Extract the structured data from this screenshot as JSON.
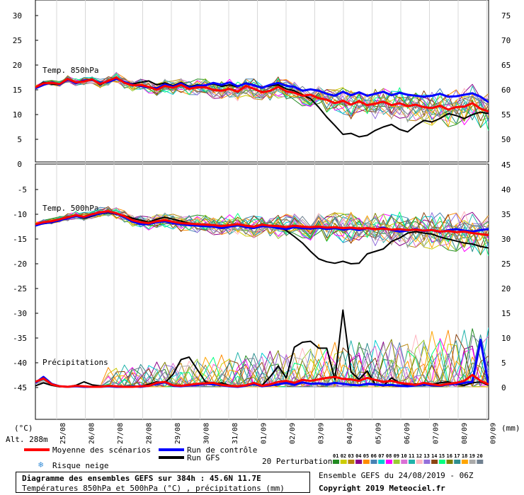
{
  "chart_data": {
    "type": "line",
    "title": "Diagramme des ensembles GEFS sur 384h : 45.6N 11.7E",
    "subtitle": "Températures 850hPa et 500hPa (°C) , précipitations (mm)",
    "ylabel": "(°C)",
    "ylabel_right": "(mm)",
    "altitude": "Alt. 288m",
    "panels": {
      "t850": {
        "label": "Temp. 850hPa",
        "ylim": [
          0,
          33
        ],
        "yticks": [
          0,
          5,
          10,
          15,
          20,
          25,
          30
        ],
        "right_ticks": [
          "50",
          "55",
          "60",
          "65",
          "70",
          "75"
        ]
      },
      "t500": {
        "label": "Temp. 500hPa",
        "ylim": [
          -50,
          -5
        ],
        "yticks": [
          -45,
          -40,
          -35,
          -30,
          -25,
          -20,
          -15,
          -10,
          -5
        ],
        "right_ticks": [
          "0",
          "5",
          "10",
          "15",
          "20",
          "25",
          "30",
          "35",
          "40",
          "45"
        ]
      },
      "precip": {
        "label": "Précipitations"
      }
    },
    "x_dates": [
      "25/08",
      "26/08",
      "27/08",
      "28/08",
      "29/08",
      "30/08",
      "31/08",
      "01/09",
      "02/09",
      "03/09",
      "04/09",
      "05/09",
      "06/09",
      "07/09",
      "08/09",
      "09/09"
    ],
    "series": [
      {
        "name": "Moyenne des scénarios",
        "color": "#ff0000",
        "t850": [
          15.5,
          16.3,
          16.4,
          16.2,
          17.2,
          16.5,
          16.7,
          17.1,
          16.2,
          16.8,
          17.5,
          16.4,
          15.9,
          16.0,
          15.6,
          15.0,
          15.8,
          15.4,
          16.0,
          15.2,
          15.5,
          15.5,
          15.0,
          14.8,
          15.2,
          14.6,
          15.8,
          15.2,
          14.5,
          14.8,
          15.6,
          14.7,
          14.4,
          13.8,
          14.0,
          13.3,
          13.0,
          12.3,
          12.8,
          12.0,
          12.7,
          11.9,
          12.2,
          12.6,
          11.9,
          12.3,
          11.7,
          12.0,
          11.5,
          11.3,
          11.8,
          11.0,
          11.5,
          11.6,
          12.3,
          11.2,
          10.6
        ],
        "t500": [
          -12.0,
          -11.6,
          -11.4,
          -11.0,
          -10.6,
          -10.2,
          -10.5,
          -10.0,
          -9.6,
          -9.4,
          -9.8,
          -10.4,
          -11.2,
          -11.6,
          -11.8,
          -11.4,
          -11.2,
          -11.5,
          -11.8,
          -11.9,
          -12.0,
          -12.1,
          -12.2,
          -12.4,
          -12.2,
          -12.0,
          -12.3,
          -12.5,
          -12.1,
          -12.3,
          -12.4,
          -12.6,
          -12.3,
          -12.5,
          -12.6,
          -12.5,
          -12.7,
          -12.6,
          -12.8,
          -12.7,
          -12.9,
          -12.8,
          -13.0,
          -12.9,
          -13.1,
          -13.0,
          -13.2,
          -13.1,
          -13.3,
          -13.2,
          -13.5,
          -13.4,
          -13.6,
          -13.5,
          -13.8,
          -14.0,
          -14.2
        ],
        "precip": [
          1.0,
          1.7,
          0.5,
          0.1,
          0.0,
          0.2,
          0.1,
          0.0,
          0.0,
          0.2,
          0.1,
          0.0,
          0.0,
          0.1,
          0.2,
          0.8,
          1.0,
          0.3,
          0.2,
          0.4,
          0.6,
          0.7,
          0.8,
          0.4,
          0.2,
          0.1,
          0.3,
          0.8,
          0.2,
          0.5,
          1.0,
          1.2,
          0.8,
          1.4,
          1.2,
          1.5,
          1.8,
          2.0,
          1.6,
          1.5,
          1.2,
          1.8,
          1.4,
          1.0,
          1.2,
          0.8,
          0.6,
          0.4,
          0.8,
          0.5,
          0.3,
          0.6,
          0.8,
          1.2,
          2.4,
          1.2,
          0.5
        ]
      },
      {
        "name": "Run de contrôle",
        "color": "#0000ff",
        "t850": [
          15.3,
          16.0,
          16.5,
          16.1,
          17.1,
          16.3,
          16.9,
          17.0,
          16.4,
          16.6,
          17.2,
          16.6,
          16.0,
          15.8,
          15.5,
          15.3,
          16.1,
          15.6,
          16.3,
          15.4,
          15.8,
          15.9,
          16.4,
          16.0,
          16.5,
          15.7,
          16.3,
          15.9,
          15.4,
          16.0,
          16.4,
          15.8,
          15.6,
          14.8,
          15.1,
          14.8,
          14.2,
          13.8,
          14.6,
          13.9,
          14.5,
          13.8,
          14.2,
          14.6,
          13.9,
          14.4,
          14.0,
          13.8,
          13.6,
          13.8,
          14.2,
          13.6,
          13.7,
          14.0,
          14.3,
          13.6,
          12.5
        ],
        "t500": [
          -12.3,
          -11.8,
          -11.6,
          -11.2,
          -10.8,
          -10.4,
          -10.6,
          -10.2,
          -9.8,
          -9.5,
          -9.9,
          -10.6,
          -11.5,
          -12.0,
          -12.0,
          -11.6,
          -11.4,
          -11.8,
          -12.0,
          -12.2,
          -12.3,
          -12.4,
          -12.5,
          -12.8,
          -12.5,
          -12.2,
          -12.6,
          -12.8,
          -12.4,
          -12.5,
          -12.8,
          -13.0,
          -12.6,
          -12.8,
          -12.9,
          -12.7,
          -13.0,
          -12.8,
          -13.1,
          -12.9,
          -13.2,
          -12.8,
          -13.0,
          -12.7,
          -13.2,
          -13.5,
          -13.3,
          -13.0,
          -13.4,
          -13.2,
          -13.6,
          -13.2,
          -13.0,
          -13.3,
          -13.5,
          -13.2,
          -13.0
        ],
        "precip": [
          0.8,
          2.0,
          0.6,
          0.1,
          0.0,
          0.1,
          0.0,
          0.0,
          0.0,
          0.1,
          0.0,
          0.0,
          0.1,
          0.0,
          0.2,
          0.6,
          0.9,
          0.2,
          0.1,
          0.3,
          0.4,
          0.6,
          0.5,
          0.3,
          0.1,
          0.0,
          0.2,
          0.6,
          0.1,
          0.3,
          0.5,
          0.8,
          0.4,
          0.9,
          0.6,
          0.7,
          0.5,
          0.8,
          0.6,
          0.4,
          0.3,
          0.6,
          0.5,
          0.3,
          0.4,
          0.2,
          0.1,
          0.3,
          0.5,
          0.3,
          0.2,
          0.5,
          0.6,
          0.8,
          1.0,
          9.5,
          0.3
        ]
      },
      {
        "name": "Run GFS",
        "color": "#000000",
        "t850": [
          15.5,
          16.5,
          16.2,
          16.0,
          17.0,
          16.5,
          16.7,
          17.2,
          16.0,
          16.8,
          17.3,
          16.5,
          16.2,
          16.5,
          16.8,
          16.0,
          16.4,
          15.8,
          16.5,
          15.6,
          16.0,
          15.9,
          16.2,
          15.7,
          16.0,
          15.6,
          16.4,
          16.0,
          15.4,
          15.8,
          16.0,
          15.2,
          14.8,
          14.0,
          13.2,
          11.5,
          9.5,
          7.8,
          6.0,
          6.2,
          5.5,
          5.8,
          6.8,
          7.5,
          8.0,
          7.0,
          6.5,
          7.8,
          8.8,
          8.5,
          9.2,
          10.2,
          9.8,
          9.2,
          10.0,
          10.5,
          10.2
        ],
        "t500": [
          -12.2,
          -11.9,
          -11.7,
          -11.3,
          -10.7,
          -10.4,
          -10.8,
          -10.4,
          -9.9,
          -9.7,
          -10.0,
          -10.3,
          -10.8,
          -11.2,
          -11.6,
          -11.0,
          -10.6,
          -11.0,
          -11.4,
          -11.8,
          -12.0,
          -12.2,
          -12.4,
          -12.6,
          -12.3,
          -12.0,
          -12.3,
          -12.5,
          -12.2,
          -12.3,
          -12.5,
          -13.3,
          -14.5,
          -15.8,
          -17.5,
          -19.0,
          -19.6,
          -19.9,
          -19.5,
          -20.0,
          -19.9,
          -18.0,
          -17.5,
          -17.0,
          -15.5,
          -14.8,
          -13.8,
          -13.5,
          -13.8,
          -14.0,
          -14.6,
          -15.0,
          -15.4,
          -15.8,
          -16.0,
          -16.5,
          -16.8
        ],
        "precip": [
          0.2,
          0.8,
          0.3,
          0.0,
          0.0,
          0.3,
          1.0,
          0.4,
          0.2,
          0.1,
          0.0,
          0.0,
          0.0,
          0.1,
          0.5,
          1.0,
          0.8,
          2.5,
          5.5,
          6.0,
          3.5,
          1.0,
          0.5,
          0.8,
          0.3,
          0.0,
          0.2,
          0.5,
          0.3,
          2.0,
          4.2,
          1.8,
          8.0,
          9.0,
          9.2,
          7.8,
          7.8,
          1.5,
          15.5,
          3.0,
          1.5,
          3.2,
          0.5,
          0.2,
          1.8,
          0.8,
          0.3,
          0.6,
          0.3,
          0.5,
          0.8,
          1.0,
          0.5,
          0.3,
          0.8,
          1.0,
          0.3
        ]
      }
    ],
    "ensemble_label": "20 Perturbations",
    "perturbation_labels": [
      "01",
      "02",
      "03",
      "04",
      "05",
      "06",
      "07",
      "08",
      "09",
      "10",
      "11",
      "12",
      "13",
      "14",
      "15",
      "16",
      "17",
      "18",
      "19",
      "20"
    ],
    "perturbation_colors": [
      "#228b22",
      "#cccc00",
      "#b8860b",
      "#8b008b",
      "#ff8c00",
      "#4682b4",
      "#00ced1",
      "#ff00ff",
      "#9acd32",
      "#da70d6",
      "#20b2aa",
      "#ffb6c1",
      "#9370db",
      "#8b4513",
      "#00ff7f",
      "#808000",
      "#2f8f8f",
      "#ffa500",
      "#aaaaaa",
      "#708090"
    ]
  },
  "legend": {
    "moyenne": "Moyenne des scénarios",
    "controle": "Run de contrôle",
    "gfs": "Run GFS",
    "neige": "Risque neige",
    "perturbations": "20 Perturbations"
  },
  "footer": {
    "title": "Diagramme des ensembles GEFS sur 384h : 45.6N 11.7E",
    "subtitle": "Températures 850hPa et 500hPa (°C) , précipitations (mm)",
    "run_info": "Ensemble GEFS du 24/08/2019 - 06Z",
    "copyright": "Copyright 2019 Meteociel.fr"
  }
}
